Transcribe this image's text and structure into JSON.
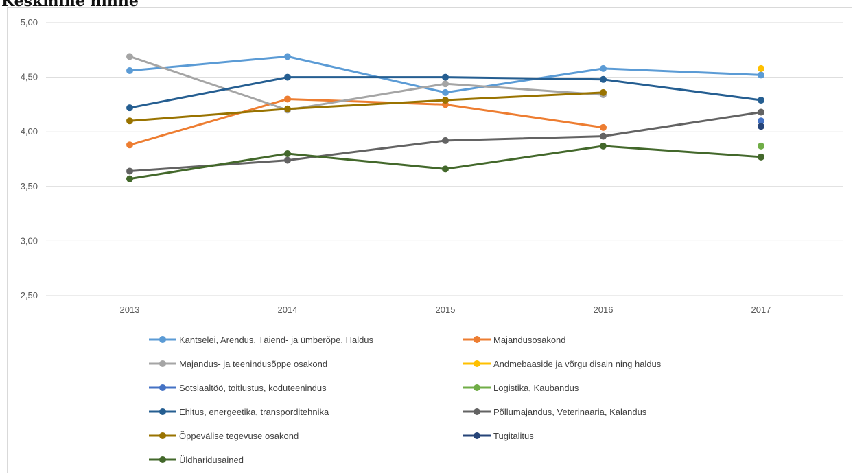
{
  "page": {
    "title": "Keskmine hinne"
  },
  "chart_data": {
    "type": "line",
    "title": "",
    "xlabel": "",
    "ylabel": "",
    "categories": [
      "2013",
      "2014",
      "2015",
      "2016",
      "2017"
    ],
    "ylim": [
      2.5,
      5.0
    ],
    "yticks": [
      2.5,
      3.0,
      3.5,
      4.0,
      4.5,
      5.0
    ],
    "ytick_labels": [
      "2,50",
      "3,00",
      "3,50",
      "4,00",
      "4,50",
      "5,00"
    ],
    "grid": true,
    "legend_position": "bottom",
    "series": [
      {
        "name": "Kantselei, Arendus, Täiend- ja ümberõpe, Haldus",
        "color": "#5b9bd5",
        "values": [
          4.56,
          4.69,
          4.36,
          4.58,
          4.52
        ]
      },
      {
        "name": "Majandusosakond",
        "color": "#ed7d31",
        "values": [
          3.88,
          4.3,
          4.25,
          4.04,
          null
        ]
      },
      {
        "name": "Majandus- ja teenindusõppe osakond",
        "color": "#a5a5a5",
        "values": [
          4.69,
          4.2,
          4.44,
          4.34,
          null
        ]
      },
      {
        "name": "Andmebaaside ja võrgu disain ning haldus",
        "color": "#ffc000",
        "values": [
          null,
          null,
          null,
          null,
          4.58
        ]
      },
      {
        "name": "Sotsiaaltöö, toitlustus, koduteenindus",
        "color": "#4472c4",
        "values": [
          null,
          null,
          null,
          null,
          4.1
        ]
      },
      {
        "name": "Logistika, Kaubandus",
        "color": "#70ad47",
        "values": [
          null,
          null,
          null,
          null,
          3.87
        ]
      },
      {
        "name": "Ehitus, energeetika, transporditehnika",
        "color": "#255e91",
        "values": [
          4.22,
          4.5,
          4.5,
          4.48,
          4.29
        ]
      },
      {
        "name": "Põllumajandus, Veterinaaria, Kalandus",
        "color": "#636363",
        "values": [
          3.64,
          3.74,
          3.92,
          3.96,
          4.18
        ]
      },
      {
        "name": "Õppevälise tegevuse osakond",
        "color": "#997300",
        "values": [
          4.1,
          4.21,
          4.29,
          4.36,
          null
        ]
      },
      {
        "name": "Tugitalitus",
        "color": "#264478",
        "values": [
          null,
          null,
          null,
          null,
          4.05
        ]
      },
      {
        "name": "Üldharidusained",
        "color": "#43682b",
        "values": [
          3.57,
          3.8,
          3.66,
          3.87,
          3.77
        ]
      }
    ]
  }
}
